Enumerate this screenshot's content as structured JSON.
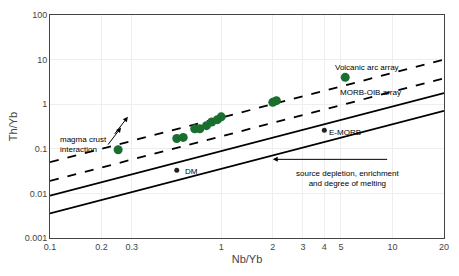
{
  "chart_data": {
    "type": "scatter",
    "xlabel": "Nb/Yb",
    "ylabel": "Th/Yb",
    "log": true,
    "grid": true,
    "xlim": [
      0.1,
      20
    ],
    "ylim": [
      0.001,
      100
    ],
    "xticks": [
      0.1,
      0.2,
      0.3,
      1,
      2,
      3,
      4,
      5,
      10,
      20
    ],
    "yticks": [
      0.001,
      0.01,
      0.1,
      1,
      10,
      100
    ],
    "series": [
      {
        "type": "line",
        "line_style": "solid",
        "color": "#000000",
        "x": [
          0.1,
          20
        ],
        "values": [
          0.008912509,
          1.782501876
        ]
      },
      {
        "type": "line",
        "line_style": "solid",
        "color": "#000000",
        "x": [
          0.1,
          20
        ],
        "values": [
          0.003548134,
          0.7096267784
        ]
      },
      {
        "type": "line",
        "line_style": "dashed",
        "color": "#000000",
        "x": [
          0.1,
          20
        ],
        "values": [
          0.05011872,
          10.02374467
        ]
      },
      {
        "type": "line",
        "line_style": "dashed",
        "color": "#000000",
        "x": [
          0.1,
          20
        ],
        "values": [
          0.01905461,
          3.810921436
        ]
      },
      {
        "type": "scatter",
        "marker": "circle",
        "color": "#1a6e2e",
        "x": [
          0.25,
          0.55,
          0.6,
          0.7,
          0.75,
          0.82,
          0.88,
          0.95,
          1.0,
          2.0,
          2.1,
          5.3
        ],
        "values": [
          0.095,
          0.17,
          0.18,
          0.28,
          0.28,
          0.33,
          0.4,
          0.45,
          0.52,
          1.1,
          1.2,
          4.0
        ]
      },
      {
        "type": "scatter",
        "marker": "circle",
        "color": "#222222",
        "x": [
          0.55
        ],
        "values": [
          0.033
        ]
      },
      {
        "type": "scatter",
        "marker": "circle",
        "color": "#222222",
        "x": [
          4.0
        ],
        "values": [
          0.26
        ]
      }
    ],
    "annotations": [
      {
        "text": "DM",
        "x": 0.6,
        "y": 0.031
      },
      {
        "text": "E-MORB",
        "x": 4.15,
        "y": 0.235
      },
      {
        "text": "Volcanic arc array",
        "x": 4.5,
        "y": 4.8
      },
      {
        "text": "MORB-OIB array",
        "x": 4.8,
        "y": 1.3
      },
      {
        "text": "magma crust\ninteraction",
        "x": 0.112,
        "y": 0.125
      },
      {
        "text": "source depletion, enrichment\nand degree of melting",
        "x": 5.5,
        "y": 0.04
      }
    ],
    "arrows": [
      {
        "x": 0.26,
        "y": 0.3,
        "from_x": 0.215,
        "from_y": 0.115
      },
      {
        "x": 0.285,
        "y": 0.52,
        "from_x": 0.235,
        "from_y": 0.2
      },
      {
        "x": 2.0,
        "y": 0.058,
        "from_x": 9.5,
        "from_y": 0.058
      }
    ]
  }
}
